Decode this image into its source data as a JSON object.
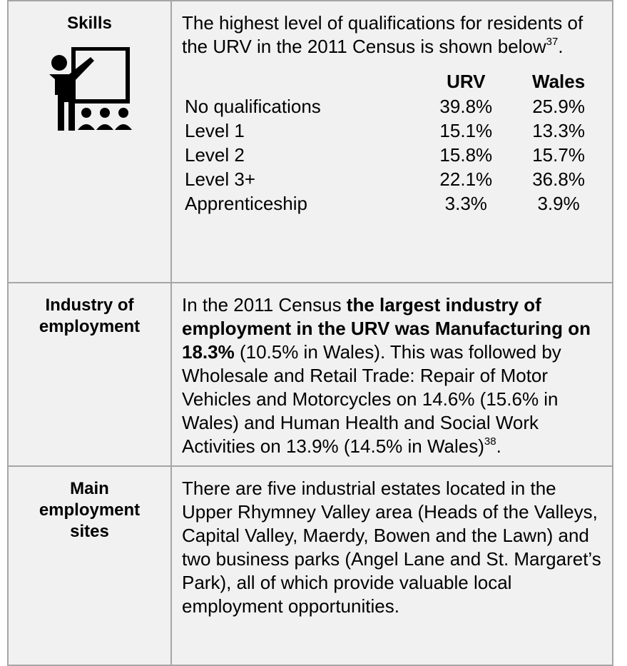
{
  "rows": [
    {
      "heading": [
        "Skills"
      ],
      "body": [
        {
          "text": "The highest level of qualifications for residents of the URV in the 2011 Census is shown below"
        },
        {
          "sup": "37"
        },
        {
          "text": "."
        }
      ],
      "table": {
        "header": [
          "URV",
          "Wales"
        ],
        "rows": [
          [
            "No qualifications",
            "39.8%",
            "25.9%"
          ],
          [
            "Level 1",
            "15.1%",
            "13.3%"
          ],
          [
            "Level 2",
            "15.8%",
            "15.7%"
          ],
          [
            "Level 3+",
            "22.1%",
            "36.8%"
          ],
          [
            "Apprenticeship",
            "3.3%",
            "3.9%"
          ]
        ]
      }
    },
    {
      "heading": [
        "Industry of",
        "employment"
      ],
      "body": [
        {
          "text": "In the 2011 Census "
        },
        {
          "bold": "the largest industry of employment in the URV was Manufacturing on 18.3%"
        },
        {
          "text": " (10.5% in Wales).  This was followed by Wholesale and Retail Trade: Repair of Motor Vehicles and Motorcycles on 14.6% (15.6% in Wales) and Human Health and Social Work Activities on 13.9% (14.5% in Wales)"
        },
        {
          "sup": "38"
        },
        {
          "text": "."
        }
      ]
    },
    {
      "heading": [
        "Main",
        "employment",
        "sites"
      ],
      "body": [
        {
          "text": "There are five industrial estates located in the Upper Rhymney Valley area (Heads of the Valleys, Capital Valley, Maerdy, Bowen and the Lawn) and two business parks (Angel Lane and St. Margaret’s Park), all of which provide valuable local employment opportunities."
        }
      ]
    }
  ]
}
